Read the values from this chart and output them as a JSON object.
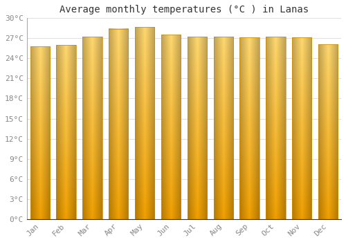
{
  "title": "Average monthly temperatures (°C ) in Lanas",
  "months": [
    "Jan",
    "Feb",
    "Mar",
    "Apr",
    "May",
    "Jun",
    "Jul",
    "Aug",
    "Sep",
    "Oct",
    "Nov",
    "Dec"
  ],
  "temperatures": [
    25.8,
    26.0,
    27.2,
    28.4,
    28.7,
    27.5,
    27.2,
    27.2,
    27.1,
    27.2,
    27.1,
    26.1
  ],
  "color_center": "#FFD060",
  "color_edge": "#F5A000",
  "color_bottom": "#F5A000",
  "ylim": [
    0,
    30
  ],
  "yticks": [
    0,
    3,
    6,
    9,
    12,
    15,
    18,
    21,
    24,
    27,
    30
  ],
  "ytick_labels": [
    "0°C",
    "3°C",
    "6°C",
    "9°C",
    "12°C",
    "15°C",
    "18°C",
    "21°C",
    "24°C",
    "27°C",
    "30°C"
  ],
  "background_color": "#ffffff",
  "grid_color": "#e0e0e0",
  "title_fontsize": 10,
  "tick_fontsize": 8,
  "bar_width": 0.75,
  "bar_edge_color": "#CC8800",
  "bar_edge_width": 0.5
}
